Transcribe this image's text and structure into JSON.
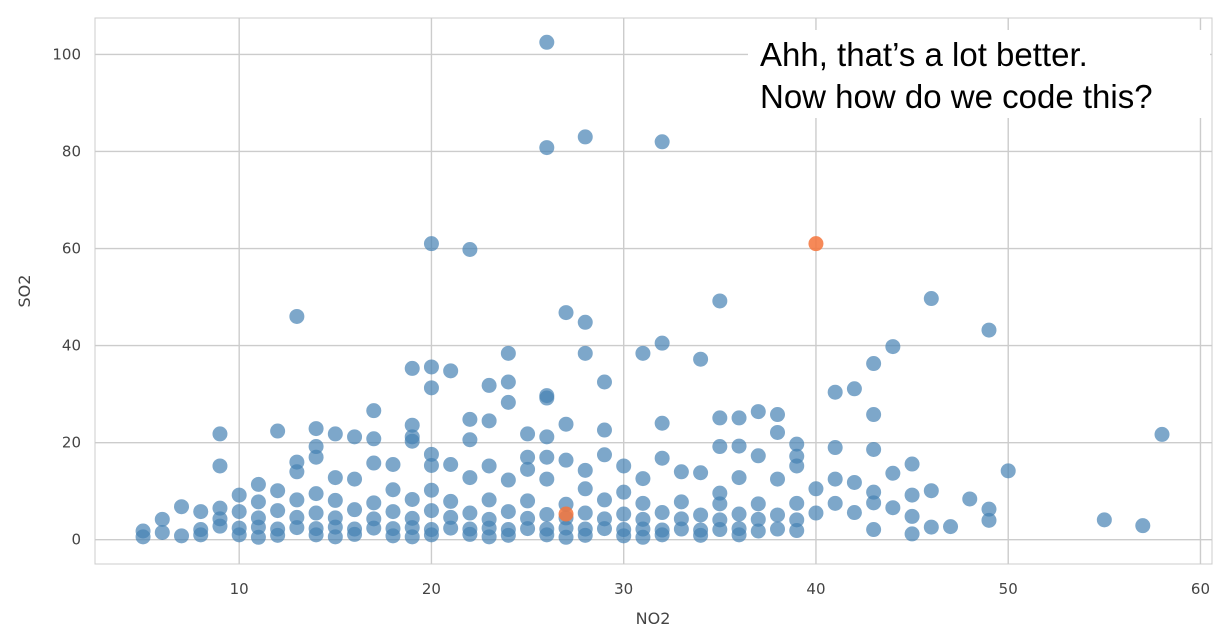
{
  "annotation": {
    "line1": "Ahh, that’s a lot better.",
    "line2": "Now how do we code this?"
  },
  "chart_data": {
    "type": "scatter",
    "xlabel": "NO2",
    "ylabel": "SO2",
    "xlim": [
      2.5,
      60.6
    ],
    "ylim": [
      -5,
      107.5
    ],
    "xticks": [
      10,
      20,
      30,
      40,
      50,
      60
    ],
    "yticks": [
      0,
      20,
      40,
      60,
      80,
      100
    ],
    "grid": true,
    "point_color": "#4682b4",
    "highlight_color": "#f4743b",
    "series": [
      {
        "points": [
          [
            26,
            102.5
          ],
          [
            28,
            83
          ],
          [
            32,
            82
          ],
          [
            26,
            80.8
          ],
          [
            20,
            61
          ],
          [
            22,
            59.8
          ],
          [
            46,
            49.7
          ],
          [
            35,
            49.2
          ],
          [
            27,
            46.8
          ],
          [
            28,
            44.8
          ],
          [
            13,
            46
          ],
          [
            49,
            43.2
          ],
          [
            44,
            39.8
          ],
          [
            32,
            40.5
          ],
          [
            31,
            38.4
          ],
          [
            24,
            38.4
          ],
          [
            28,
            38.4
          ],
          [
            34,
            37.2
          ],
          [
            43,
            36.3
          ],
          [
            20,
            35.6
          ],
          [
            19,
            35.3
          ],
          [
            21,
            34.8
          ],
          [
            29,
            32.5
          ],
          [
            24,
            32.5
          ],
          [
            23,
            31.8
          ],
          [
            20,
            31.3
          ],
          [
            42,
            31.1
          ],
          [
            41,
            30.4
          ],
          [
            26,
            29.7
          ],
          [
            26,
            29.2
          ],
          [
            24,
            28.3
          ],
          [
            17,
            26.6
          ],
          [
            37,
            26.4
          ],
          [
            38,
            25.8
          ],
          [
            43,
            25.8
          ],
          [
            35,
            25.1
          ],
          [
            36,
            25.1
          ],
          [
            22,
            24.8
          ],
          [
            23,
            24.5
          ],
          [
            32,
            24
          ],
          [
            27,
            23.8
          ],
          [
            19,
            23.6
          ],
          [
            14,
            22.9
          ],
          [
            29,
            22.6
          ],
          [
            12,
            22.4
          ],
          [
            38,
            22.1
          ],
          [
            9,
            21.8
          ],
          [
            15,
            21.8
          ],
          [
            25,
            21.8
          ],
          [
            58,
            21.7
          ],
          [
            16,
            21.2
          ],
          [
            26,
            21.2
          ],
          [
            19,
            21.2
          ],
          [
            17,
            20.8
          ],
          [
            22,
            20.6
          ],
          [
            19,
            20.3
          ],
          [
            39,
            19.7
          ],
          [
            35,
            19.2
          ],
          [
            36,
            19.3
          ],
          [
            14,
            19.2
          ],
          [
            41,
            19
          ],
          [
            43,
            18.6
          ],
          [
            20,
            17.6
          ],
          [
            29,
            17.5
          ],
          [
            37,
            17.3
          ],
          [
            39,
            17.2
          ],
          [
            14,
            17
          ],
          [
            25,
            17
          ],
          [
            26,
            17
          ],
          [
            32,
            16.8
          ],
          [
            13,
            16
          ],
          [
            17,
            15.8
          ],
          [
            18,
            15.5
          ],
          [
            20,
            15.3
          ],
          [
            21,
            15.5
          ],
          [
            23,
            15.2
          ],
          [
            27,
            16.4
          ],
          [
            30,
            15.2
          ],
          [
            45,
            15.6
          ],
          [
            39,
            15.2
          ],
          [
            9,
            15.2
          ],
          [
            25,
            14.5
          ],
          [
            28,
            14.3
          ],
          [
            33,
            14
          ],
          [
            34,
            13.8
          ],
          [
            44,
            13.7
          ],
          [
            50,
            14.2
          ],
          [
            13,
            14
          ],
          [
            15,
            12.8
          ],
          [
            16,
            12.5
          ],
          [
            11,
            11.4
          ],
          [
            22,
            12.8
          ],
          [
            24,
            12.3
          ],
          [
            26,
            12.5
          ],
          [
            31,
            12.6
          ],
          [
            36,
            12.8
          ],
          [
            38,
            12.5
          ],
          [
            41,
            12.5
          ],
          [
            42,
            11.8
          ],
          [
            46,
            10.1
          ],
          [
            40,
            10.5
          ],
          [
            10,
            9.2
          ],
          [
            12,
            10.1
          ],
          [
            14,
            9.5
          ],
          [
            18,
            10.3
          ],
          [
            20,
            10.2
          ],
          [
            28,
            10.5
          ],
          [
            30,
            9.8
          ],
          [
            35,
            9.6
          ],
          [
            43,
            9.8
          ],
          [
            45,
            9.2
          ],
          [
            48,
            8.4
          ],
          [
            9,
            6.5
          ],
          [
            11,
            7.8
          ],
          [
            13,
            8.2
          ],
          [
            15,
            8.1
          ],
          [
            17,
            7.6
          ],
          [
            19,
            8.3
          ],
          [
            21,
            7.9
          ],
          [
            23,
            8.2
          ],
          [
            25,
            8
          ],
          [
            27,
            7.3
          ],
          [
            29,
            8.2
          ],
          [
            31,
            7.5
          ],
          [
            33,
            7.8
          ],
          [
            35,
            7.4
          ],
          [
            37,
            7.4
          ],
          [
            39,
            7.5
          ],
          [
            41,
            7.5
          ],
          [
            43,
            7.6
          ],
          [
            44,
            6.6
          ],
          [
            49,
            6.3
          ],
          [
            7,
            6.8
          ],
          [
            8,
            5.8
          ],
          [
            10,
            5.8
          ],
          [
            12,
            6
          ],
          [
            14,
            5.5
          ],
          [
            16,
            6.2
          ],
          [
            18,
            5.8
          ],
          [
            20,
            6
          ],
          [
            22,
            5.5
          ],
          [
            24,
            5.8
          ],
          [
            26,
            5.2
          ],
          [
            28,
            5.5
          ],
          [
            30,
            5.3
          ],
          [
            32,
            5.6
          ],
          [
            34,
            5.1
          ],
          [
            36,
            5.3
          ],
          [
            38,
            5.1
          ],
          [
            40,
            5.5
          ],
          [
            42,
            5.6
          ],
          [
            45,
            4.8
          ],
          [
            6,
            4.2
          ],
          [
            9,
            4.3
          ],
          [
            11,
            4.5
          ],
          [
            13,
            4.6
          ],
          [
            15,
            4.5
          ],
          [
            17,
            4.3
          ],
          [
            19,
            4.4
          ],
          [
            21,
            4.6
          ],
          [
            23,
            4.2
          ],
          [
            25,
            4.4
          ],
          [
            27,
            4.5
          ],
          [
            29,
            4.3
          ],
          [
            31,
            4.2
          ],
          [
            33,
            4.3
          ],
          [
            35,
            4.1
          ],
          [
            37,
            4.2
          ],
          [
            39,
            4.1
          ],
          [
            49,
            4
          ],
          [
            55,
            4.1
          ],
          [
            5,
            1.8
          ],
          [
            7,
            0.8
          ],
          [
            8,
            2.1
          ],
          [
            9,
            2.8
          ],
          [
            10,
            2.4
          ],
          [
            11,
            2.6
          ],
          [
            12,
            2.2
          ],
          [
            13,
            2.5
          ],
          [
            14,
            2.3
          ],
          [
            15,
            2.6
          ],
          [
            16,
            2.2
          ],
          [
            17,
            2.4
          ],
          [
            18,
            2.3
          ],
          [
            19,
            2.5
          ],
          [
            20,
            2.1
          ],
          [
            21,
            2.4
          ],
          [
            22,
            2.2
          ],
          [
            23,
            2.4
          ],
          [
            24,
            2.1
          ],
          [
            25,
            2.3
          ],
          [
            26,
            2.2
          ],
          [
            27,
            2.4
          ],
          [
            28,
            2.2
          ],
          [
            29,
            2.3
          ],
          [
            30,
            2.1
          ],
          [
            31,
            2.2
          ],
          [
            32,
            2
          ],
          [
            33,
            2.2
          ],
          [
            34,
            2
          ],
          [
            35,
            2.1
          ],
          [
            36,
            2.3
          ],
          [
            37,
            1.8
          ],
          [
            38,
            2.2
          ],
          [
            39,
            1.9
          ],
          [
            43,
            2.1
          ],
          [
            45,
            1.2
          ],
          [
            46,
            2.6
          ],
          [
            47,
            2.7
          ],
          [
            57,
            2.9
          ],
          [
            5,
            0.6
          ],
          [
            6,
            1.5
          ],
          [
            8,
            1
          ],
          [
            10,
            1
          ],
          [
            12,
            0.9
          ],
          [
            14,
            1
          ],
          [
            16,
            1.1
          ],
          [
            18,
            0.8
          ],
          [
            20,
            1
          ],
          [
            22,
            1.1
          ],
          [
            24,
            0.9
          ],
          [
            26,
            1
          ],
          [
            28,
            0.9
          ],
          [
            30,
            0.8
          ],
          [
            32,
            1
          ],
          [
            34,
            0.9
          ],
          [
            36,
            1
          ],
          [
            11,
            0.5
          ],
          [
            15,
            0.6
          ],
          [
            19,
            0.6
          ],
          [
            23,
            0.6
          ],
          [
            27,
            0.5
          ],
          [
            31,
            0.5
          ]
        ]
      },
      {
        "points": [
          [
            40,
            61
          ],
          [
            27,
            5.3
          ]
        ]
      }
    ]
  }
}
